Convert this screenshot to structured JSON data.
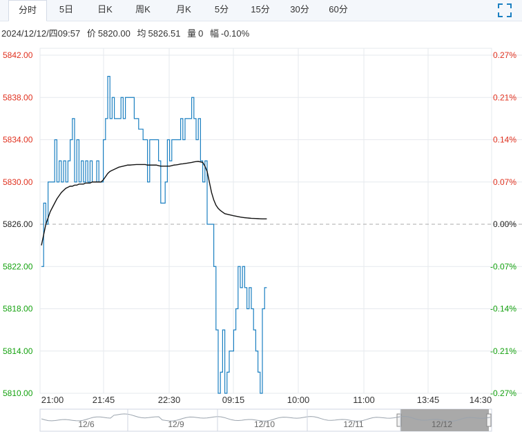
{
  "tabs": [
    {
      "label": "分时",
      "active": true
    },
    {
      "label": "5日"
    },
    {
      "label": "日K"
    },
    {
      "label": "周K"
    },
    {
      "label": "月K"
    },
    {
      "label": "5分"
    },
    {
      "label": "15分"
    },
    {
      "label": "30分"
    },
    {
      "label": "60分"
    }
  ],
  "info": {
    "datetime": "2024/12/12/四09:57",
    "price_label": "价",
    "price": "5820.00",
    "avg_label": "均",
    "avg": "5826.51",
    "volume_label": "量",
    "volume": "0",
    "change_label": "幅",
    "change": "-0.10%"
  },
  "colors": {
    "price_line": "#1a7fc1",
    "avg_line": "#111111",
    "up": "#e0301e",
    "down": "#13a10e",
    "base": "#222222",
    "grid": "#e6e9ee"
  },
  "icons": {
    "fullscreen": "fullscreen-icon"
  },
  "chart_data": {
    "type": "line",
    "ylim": [
      5810,
      5842
    ],
    "base_price": 5826,
    "y_ticks": [
      "5842.00",
      "5838.00",
      "5834.00",
      "5830.00",
      "5826.00",
      "5822.00",
      "5818.00",
      "5814.00",
      "5810.00"
    ],
    "pct_ticks": [
      "0.27%",
      "0.21%",
      "0.14%",
      "0.07%",
      "0.00%",
      "-0.07%",
      "-0.14%",
      "-0.21%",
      "-0.27%"
    ],
    "x_ticks": [
      "21:00",
      "21:45",
      "22:30",
      "09:15",
      "10:00",
      "11:00",
      "13:45",
      "14:30"
    ],
    "session_slots": 230,
    "series": [
      {
        "name": "价",
        "values": [
          5822,
          5828,
          5826,
          5830,
          5830,
          5830,
          5834,
          5830,
          5832,
          5830,
          5832,
          5830,
          5832,
          5834,
          5836,
          5830,
          5834,
          5830,
          5832,
          5830,
          5832,
          5830,
          5832,
          5830,
          5830,
          5832,
          5830,
          5830,
          5834,
          5836,
          5840,
          5836,
          5838,
          5836,
          5836,
          5836,
          5838,
          5836,
          5838,
          5838,
          5838,
          5838,
          5836,
          5836,
          5835,
          5835,
          5834,
          5834,
          5830,
          5834,
          5834,
          5834,
          5834,
          5832,
          5828,
          5828,
          5830,
          5834,
          5832,
          5834,
          5834,
          5834,
          5834,
          5836,
          5834,
          5836,
          5836,
          5836,
          5838,
          5836,
          5834,
          5836,
          5832,
          5830,
          5832,
          5826,
          5826,
          5826,
          5822,
          5816,
          5810,
          5812,
          5816,
          5810,
          5812,
          5814,
          5814,
          5816,
          5818,
          5822,
          5820,
          5822,
          5820,
          5818,
          5820,
          5818,
          5816,
          5814,
          5812,
          5810,
          5818,
          5820,
          5820
        ],
        "color": "#1a7fc1"
      },
      {
        "name": "均",
        "values": [
          5824,
          5825,
          5826,
          5826.6,
          5827.2,
          5827.6,
          5828,
          5828.4,
          5828.7,
          5829,
          5829.2,
          5829.4,
          5829.5,
          5829.6,
          5829.6,
          5829.7,
          5829.7,
          5829.8,
          5829.8,
          5829.8,
          5829.9,
          5829.9,
          5829.9,
          5830,
          5830,
          5830,
          5830,
          5830,
          5830.2,
          5830.5,
          5830.8,
          5831,
          5831.1,
          5831.2,
          5831.3,
          5831.4,
          5831.45,
          5831.5,
          5831.55,
          5831.6,
          5831.6,
          5831.62,
          5831.64,
          5831.65,
          5831.65,
          5831.65,
          5831.65,
          5831.65,
          5831.6,
          5831.6,
          5831.6,
          5831.6,
          5831.6,
          5831.55,
          5831.5,
          5831.5,
          5831.5,
          5831.5,
          5831.5,
          5831.55,
          5831.6,
          5831.62,
          5831.65,
          5831.7,
          5831.72,
          5831.75,
          5831.78,
          5831.82,
          5831.85,
          5831.9,
          5831.93,
          5831.95,
          5831.9,
          5831.85,
          5831.5,
          5831,
          5830,
          5829,
          5828.3,
          5827.8,
          5827.5,
          5827.3,
          5827.15,
          5827,
          5826.95,
          5826.9,
          5826.85,
          5826.8,
          5826.76,
          5826.72,
          5826.68,
          5826.65,
          5826.62,
          5826.6,
          5826.58,
          5826.56,
          5826.55,
          5826.54,
          5826.53,
          5826.52,
          5826.51,
          5826.51,
          5826.51
        ],
        "color": "#111111"
      }
    ]
  },
  "navigator": {
    "labels": [
      "12/6",
      "12/9",
      "12/10",
      "12/11",
      "12/12"
    ]
  }
}
